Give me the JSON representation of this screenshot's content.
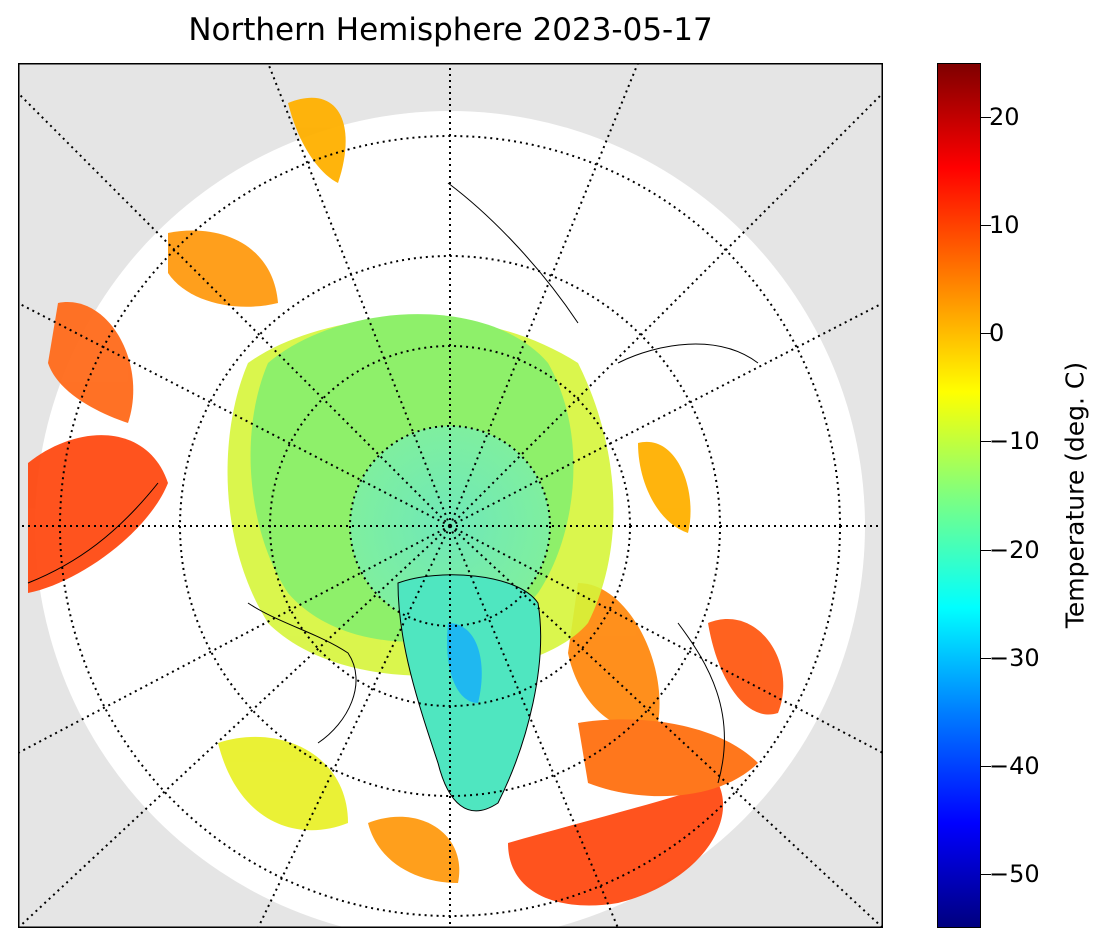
{
  "title": "Northern Hemisphere 2023-05-17",
  "map": {
    "projection": "north polar stereographic",
    "background_color": "#e5e5e5",
    "graticule": "dotted meridians and parallels"
  },
  "colorbar": {
    "label": "Temperature (deg. C)",
    "range": [
      -55,
      25
    ],
    "ticks": [
      {
        "value": 20,
        "label": "20"
      },
      {
        "value": 10,
        "label": "10"
      },
      {
        "value": 0,
        "label": "0"
      },
      {
        "value": -10,
        "label": "−10"
      },
      {
        "value": -20,
        "label": "−20"
      },
      {
        "value": -30,
        "label": "−30"
      },
      {
        "value": -40,
        "label": "−40"
      },
      {
        "value": -50,
        "label": "−50"
      }
    ],
    "colormap": [
      "#00007f",
      "#0000ff",
      "#007fff",
      "#00ffff",
      "#7fff7f",
      "#ffff00",
      "#ff7f00",
      "#ff0000",
      "#7f0000"
    ]
  }
}
